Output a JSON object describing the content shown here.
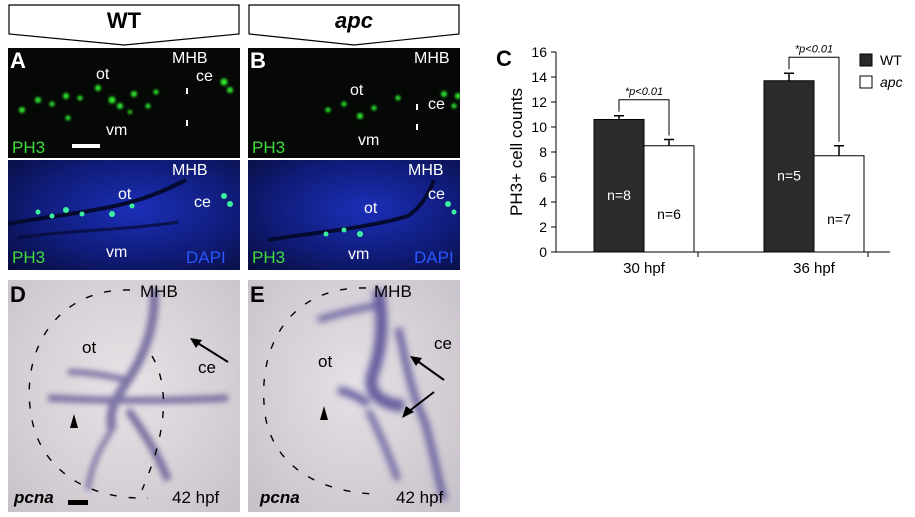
{
  "header": {
    "wt": "WT",
    "apc": "apc"
  },
  "panels": {
    "A": {
      "letter": "A",
      "ot": "ot",
      "vm": "vm",
      "mhb": "MHB",
      "ce": "ce",
      "ph3": "PH3"
    },
    "A2": {
      "ot": "ot",
      "vm": "vm",
      "mhb": "MHB",
      "ce": "ce",
      "ph3": "PH3",
      "dapi": "DAPI"
    },
    "B": {
      "letter": "B",
      "ot": "ot",
      "vm": "vm",
      "mhb": "MHB",
      "ce": "ce",
      "ph3": "PH3"
    },
    "B2": {
      "ot": "ot",
      "vm": "vm",
      "mhb": "MHB",
      "ce": "ce",
      "ph3": "PH3",
      "dapi": "DAPI"
    },
    "C": {
      "letter": "C"
    },
    "D": {
      "letter": "D",
      "mhb": "MHB",
      "ot": "ot",
      "ce": "ce",
      "gene": "pcna",
      "stage": "42 hpf"
    },
    "E": {
      "letter": "E",
      "mhb": "MHB",
      "ot": "ot",
      "ce": "ce",
      "gene": "pcna",
      "stage": "42 hpf"
    }
  },
  "chart_data": {
    "type": "bar",
    "ylabel": "PH3+ cell counts",
    "ylim": [
      0,
      16
    ],
    "yticks": [
      0,
      2,
      4,
      6,
      8,
      10,
      12,
      14,
      16
    ],
    "categories": [
      "30 hpf",
      "36 hpf"
    ],
    "series": [
      {
        "name": "WT",
        "color": "#2b2b2b",
        "values": [
          10.6,
          13.7
        ],
        "errors": [
          0.3,
          0.6
        ],
        "n_labels": [
          "n=8",
          "n=5"
        ]
      },
      {
        "name": "apc",
        "color": "#ffffff",
        "values": [
          8.5,
          7.7
        ],
        "errors": [
          0.5,
          0.8
        ],
        "n_labels": [
          "n=6",
          "n=7"
        ]
      }
    ],
    "annotations": [
      "*p<0.01",
      "*p<0.01"
    ],
    "legend": "top-right"
  }
}
